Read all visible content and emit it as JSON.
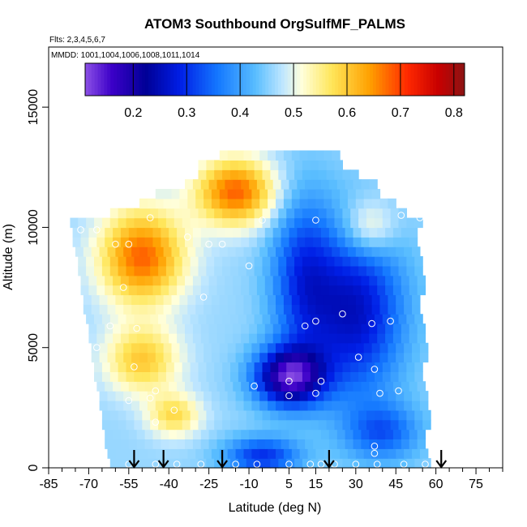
{
  "chart_data": {
    "type": "heatmap",
    "title": "ATOM3 Southbound OrgSulfMF_PALMS",
    "subtitle_flights": "Flts: 2,3,4,5,6,7",
    "subtitle_dates": "MMDD: 1001,1004,1006,1008,1011,1014",
    "xlabel": "Latitude (deg N)",
    "ylabel": "Altitude (m)",
    "xlim": [
      -85,
      85
    ],
    "ylim": [
      0,
      17500
    ],
    "xticks": [
      "-85",
      "-70",
      "-55",
      "-40",
      "-25",
      "-10",
      "5",
      "15",
      "30",
      "45",
      "60",
      "75"
    ],
    "yticks": [
      "0",
      "5000",
      "10000",
      "15000"
    ],
    "colorbar": {
      "range": [
        0.11,
        0.82
      ],
      "ticks": [
        "0.2",
        "0.3",
        "0.4",
        "0.5",
        "0.6",
        "0.7",
        "0.8"
      ]
    },
    "profile_arrows_lat": [
      -53,
      -42,
      -20,
      20,
      62
    ],
    "field_description": {
      "warm_upper_southern": {
        "lat": [
          -70,
          -25
        ],
        "alt": [
          6500,
          10500
        ],
        "value": 0.65
      },
      "hot_core_aloft": {
        "lat": [
          -25,
          5
        ],
        "alt": [
          10500,
          13000
        ],
        "value": 0.72
      },
      "low_center_midlevel": {
        "lat": [
          -10,
          20
        ],
        "alt": [
          3000,
          5000
        ],
        "value": 0.18
      },
      "neutral_northern": {
        "lat": [
          25,
          55
        ],
        "alt": [
          2000,
          10000
        ],
        "value": 0.32
      }
    }
  }
}
